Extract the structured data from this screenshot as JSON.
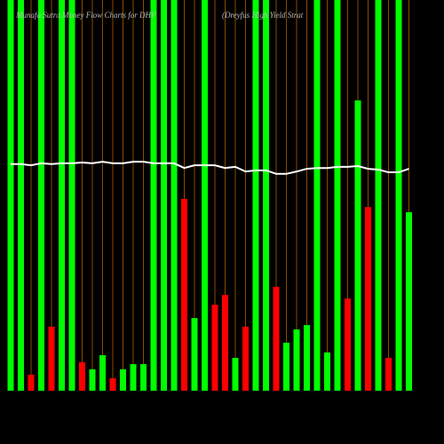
{
  "chart_data": {
    "type": "bar",
    "title": "Munafa Sutra Money Flow Charts for DHF",
    "subtitle": "(Dreyfus High Yield Strat",
    "ylim": [
      0,
      100
    ],
    "grid": true,
    "grid_color": "#8a4a00",
    "line_color": "#ffffff",
    "values": [
      100,
      100,
      4.1,
      100,
      16.4,
      100,
      100,
      7.3,
      5.5,
      9.1,
      3.2,
      5.5,
      6.8,
      6.8,
      100,
      100,
      100,
      49.1,
      18.6,
      100,
      22,
      24.5,
      8.4,
      16.4,
      100,
      100,
      26.6,
      12.3,
      15.7,
      16.8,
      100,
      9.8,
      100,
      23.6,
      74.3,
      47,
      100,
      8.4,
      100,
      45.7
    ],
    "bar_colors": [
      "#00ff00",
      "#00ff00",
      "#ff0000",
      "#00ff00",
      "#ff0000",
      "#00ff00",
      "#00ff00",
      "#ff0000",
      "#00ff00",
      "#00ff00",
      "#ff0000",
      "#00ff00",
      "#00ff00",
      "#00ff00",
      "#00ff00",
      "#00ff00",
      "#00ff00",
      "#ff0000",
      "#00ff00",
      "#00ff00",
      "#ff0000",
      "#ff0000",
      "#00ff00",
      "#ff0000",
      "#00ff00",
      "#00ff00",
      "#ff0000",
      "#00ff00",
      "#00ff00",
      "#00ff00",
      "#00ff00",
      "#00ff00",
      "#00ff00",
      "#ff0000",
      "#00ff00",
      "#ff0000",
      "#00ff00",
      "#ff0000",
      "#00ff00",
      "#00ff00"
    ],
    "line_values": [
      58.0,
      58.0,
      57.7,
      58.2,
      58.0,
      58.2,
      58.2,
      58.4,
      58.2,
      58.6,
      58.2,
      58.2,
      58.6,
      58.6,
      58.2,
      58.2,
      58.2,
      57.0,
      57.7,
      57.7,
      57.7,
      57.0,
      57.3,
      56.1,
      56.4,
      56.4,
      55.5,
      55.5,
      56.1,
      56.8,
      57.0,
      57.0,
      57.3,
      57.3,
      57.5,
      56.8,
      56.6,
      55.9,
      55.9,
      56.8
    ]
  }
}
